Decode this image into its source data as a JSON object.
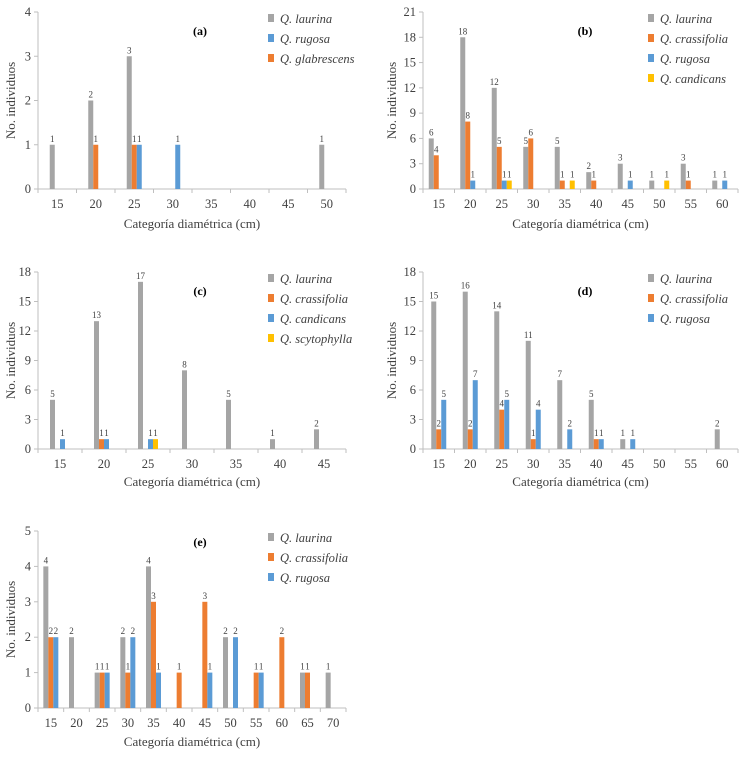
{
  "colors": {
    "Q. laurina": "#a5a5a5",
    "Q. rugosa": "#5b9bd5",
    "Q. glabrescens": "#ed7d31",
    "Q. crassifolia": "#ed7d31",
    "Q. candicans": "#ffc000",
    "Q. scytophylla": "#ffc000",
    "axis": "#bfbfbf"
  },
  "chart_data": [
    {
      "type": "bar",
      "panel_label": "(a)",
      "xlabel": "Categoría diamétrica  (cm)",
      "ylabel": "No. individuos",
      "ylim": [
        0,
        4
      ],
      "ystep": 1,
      "categories": [
        "15",
        "20",
        "25",
        "30",
        "35",
        "40",
        "45",
        "50"
      ],
      "series": [
        {
          "name": "Q. laurina",
          "color": "#a5a5a5",
          "values": [
            1,
            2,
            3,
            0,
            0,
            0,
            0,
            1
          ]
        },
        {
          "name": "Q. rugosa",
          "color": "#5b9bd5",
          "values": [
            0,
            0,
            1,
            1,
            0,
            0,
            0,
            0
          ]
        },
        {
          "name": "Q. glabrescens",
          "color": "#ed7d31",
          "values": [
            0,
            1,
            1,
            0,
            0,
            0,
            0,
            0
          ]
        }
      ],
      "bar_series_order": [
        0,
        2,
        1
      ],
      "data_labels": true,
      "grid": false,
      "legend": "top-right"
    },
    {
      "type": "bar",
      "panel_label": "(b)",
      "xlabel": "Categoría diamétrica  (cm)",
      "ylabel": "No. individuos",
      "ylim": [
        0,
        21
      ],
      "ystep": 3,
      "categories": [
        "15",
        "20",
        "25",
        "30",
        "35",
        "40",
        "45",
        "50",
        "55",
        "60"
      ],
      "series": [
        {
          "name": "Q. laurina",
          "color": "#a5a5a5",
          "values": [
            6,
            18,
            12,
            5,
            5,
            2,
            3,
            1,
            3,
            1
          ]
        },
        {
          "name": "Q. crassifolia",
          "color": "#ed7d31",
          "values": [
            4,
            8,
            5,
            6,
            1,
            1,
            0,
            0,
            1,
            0
          ]
        },
        {
          "name": "Q. rugosa",
          "color": "#5b9bd5",
          "values": [
            0,
            1,
            1,
            0,
            0,
            0,
            1,
            0,
            0,
            1
          ]
        },
        {
          "name": "Q. candicans",
          "color": "#ffc000",
          "values": [
            0,
            0,
            1,
            0,
            1,
            0,
            0,
            1,
            0,
            0
          ]
        }
      ],
      "bar_series_order": [
        0,
        1,
        2,
        3
      ],
      "data_labels": true,
      "grid": false,
      "legend": "top-right"
    },
    {
      "type": "bar",
      "panel_label": "(c)",
      "xlabel": "Categoría diamétrica  (cm)",
      "ylabel": "No. individuos",
      "ylim": [
        0,
        18
      ],
      "ystep": 3,
      "categories": [
        "15",
        "20",
        "25",
        "30",
        "35",
        "40",
        "45"
      ],
      "series": [
        {
          "name": "Q. laurina",
          "color": "#a5a5a5",
          "values": [
            5,
            13,
            17,
            8,
            5,
            1,
            2
          ]
        },
        {
          "name": "Q. crassifolia",
          "color": "#ed7d31",
          "values": [
            0,
            1,
            0,
            0,
            0,
            0,
            0
          ]
        },
        {
          "name": "Q. candicans",
          "color": "#5b9bd5",
          "values": [
            1,
            1,
            1,
            0,
            0,
            0,
            0
          ]
        },
        {
          "name": "Q. scytophylla",
          "color": "#ffc000",
          "values": [
            0,
            0,
            1,
            0,
            0,
            0,
            0
          ]
        }
      ],
      "bar_series_order": [
        0,
        1,
        2,
        3
      ],
      "data_labels": true,
      "grid": false,
      "legend": "top-right"
    },
    {
      "type": "bar",
      "panel_label": "(d)",
      "xlabel": "Categoría diamétrica  (cm)",
      "ylabel": "No. individuos",
      "ylim": [
        0,
        18
      ],
      "ystep": 3,
      "categories": [
        "15",
        "20",
        "25",
        "30",
        "35",
        "40",
        "45",
        "50",
        "55",
        "60"
      ],
      "series": [
        {
          "name": "Q. laurina",
          "color": "#a5a5a5",
          "values": [
            15,
            16,
            14,
            11,
            7,
            5,
            1,
            0,
            0,
            2
          ]
        },
        {
          "name": "Q. crassifolia",
          "color": "#ed7d31",
          "values": [
            2,
            2,
            4,
            1,
            0,
            1,
            0,
            0,
            0,
            0
          ]
        },
        {
          "name": "Q. rugosa",
          "color": "#5b9bd5",
          "values": [
            5,
            7,
            5,
            4,
            2,
            1,
            1,
            0,
            0,
            0
          ]
        }
      ],
      "bar_series_order": [
        0,
        1,
        2
      ],
      "data_labels": true,
      "grid": false,
      "legend": "top-right"
    },
    {
      "type": "bar",
      "panel_label": "(e)",
      "xlabel": "Categoría diamétrica  (cm)",
      "ylabel": "No. individuos",
      "ylim": [
        0,
        5
      ],
      "ystep": 1,
      "categories": [
        "15",
        "20",
        "25",
        "30",
        "35",
        "40",
        "45",
        "50",
        "55",
        "60",
        "65",
        "70"
      ],
      "series": [
        {
          "name": "Q. laurina",
          "color": "#a5a5a5",
          "values": [
            4,
            2,
            1,
            2,
            4,
            0,
            0,
            2,
            0,
            0,
            1,
            1
          ]
        },
        {
          "name": "Q. crassifolia",
          "color": "#ed7d31",
          "values": [
            2,
            0,
            1,
            1,
            3,
            1,
            3,
            0,
            1,
            2,
            1,
            0
          ]
        },
        {
          "name": "Q. rugosa",
          "color": "#5b9bd5",
          "values": [
            2,
            0,
            1,
            2,
            1,
            0,
            1,
            2,
            1,
            0,
            0,
            0
          ]
        }
      ],
      "bar_series_order": [
        0,
        1,
        2
      ],
      "data_labels": true,
      "grid": false,
      "legend": "top-right"
    }
  ]
}
